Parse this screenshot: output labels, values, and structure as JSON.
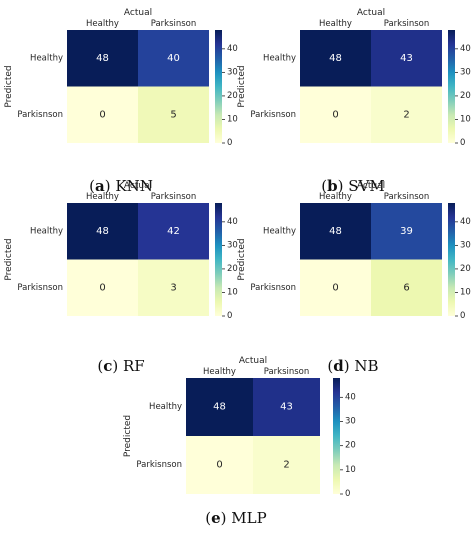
{
  "chart_data": [
    {
      "type": "heatmap",
      "caption_letter": "a",
      "caption_name": "KNN",
      "xlabel": "Actual",
      "ylabel": "Predicted",
      "x_categories": [
        "Healthy",
        "Parksinson"
      ],
      "y_categories": [
        "Healthy",
        "Parkisnson"
      ],
      "values": [
        [
          48,
          40
        ],
        [
          0,
          5
        ]
      ],
      "colorbar_ticks": [
        "0",
        "10",
        "20",
        "30",
        "40"
      ],
      "colorbar_range": [
        0,
        48
      ]
    },
    {
      "type": "heatmap",
      "caption_letter": "b",
      "caption_name": "SVM",
      "xlabel": "Actual",
      "ylabel": "Predicted",
      "x_categories": [
        "Healthy",
        "Parksinson"
      ],
      "y_categories": [
        "Healthy",
        "Parkisnson"
      ],
      "values": [
        [
          48,
          43
        ],
        [
          0,
          2
        ]
      ],
      "colorbar_ticks": [
        "0",
        "10",
        "20",
        "30",
        "40"
      ],
      "colorbar_range": [
        0,
        48
      ]
    },
    {
      "type": "heatmap",
      "caption_letter": "c",
      "caption_name": "RF",
      "xlabel": "Actual",
      "ylabel": "Predicted",
      "x_categories": [
        "Healthy",
        "Parksinson"
      ],
      "y_categories": [
        "Healthy",
        "Parkisnson"
      ],
      "values": [
        [
          48,
          42
        ],
        [
          0,
          3
        ]
      ],
      "colorbar_ticks": [
        "0",
        "10",
        "20",
        "30",
        "40"
      ],
      "colorbar_range": [
        0,
        48
      ]
    },
    {
      "type": "heatmap",
      "caption_letter": "d",
      "caption_name": "NB",
      "xlabel": "Actual",
      "ylabel": "Predicted",
      "x_categories": [
        "Healthy",
        "Parksinson"
      ],
      "y_categories": [
        "Healthy",
        "Parkisnson"
      ],
      "values": [
        [
          48,
          39
        ],
        [
          0,
          6
        ]
      ],
      "colorbar_ticks": [
        "0",
        "10",
        "20",
        "30",
        "40"
      ],
      "colorbar_range": [
        0,
        48
      ]
    },
    {
      "type": "heatmap",
      "caption_letter": "e",
      "caption_name": "MLP",
      "xlabel": "Actual",
      "ylabel": "Predicted",
      "x_categories": [
        "Healthy",
        "Parksinson"
      ],
      "y_categories": [
        "Healthy",
        "Parkisnson"
      ],
      "values": [
        [
          48,
          43
        ],
        [
          0,
          2
        ]
      ],
      "colorbar_ticks": [
        "0",
        "10",
        "20",
        "30",
        "40"
      ],
      "colorbar_range": [
        0,
        48
      ]
    }
  ],
  "colormap": [
    "#ffffd9",
    "#edf8b1",
    "#c7e9b4",
    "#7fcdbb",
    "#41b6c4",
    "#1d91c0",
    "#225ea8",
    "#253494",
    "#081d58"
  ]
}
